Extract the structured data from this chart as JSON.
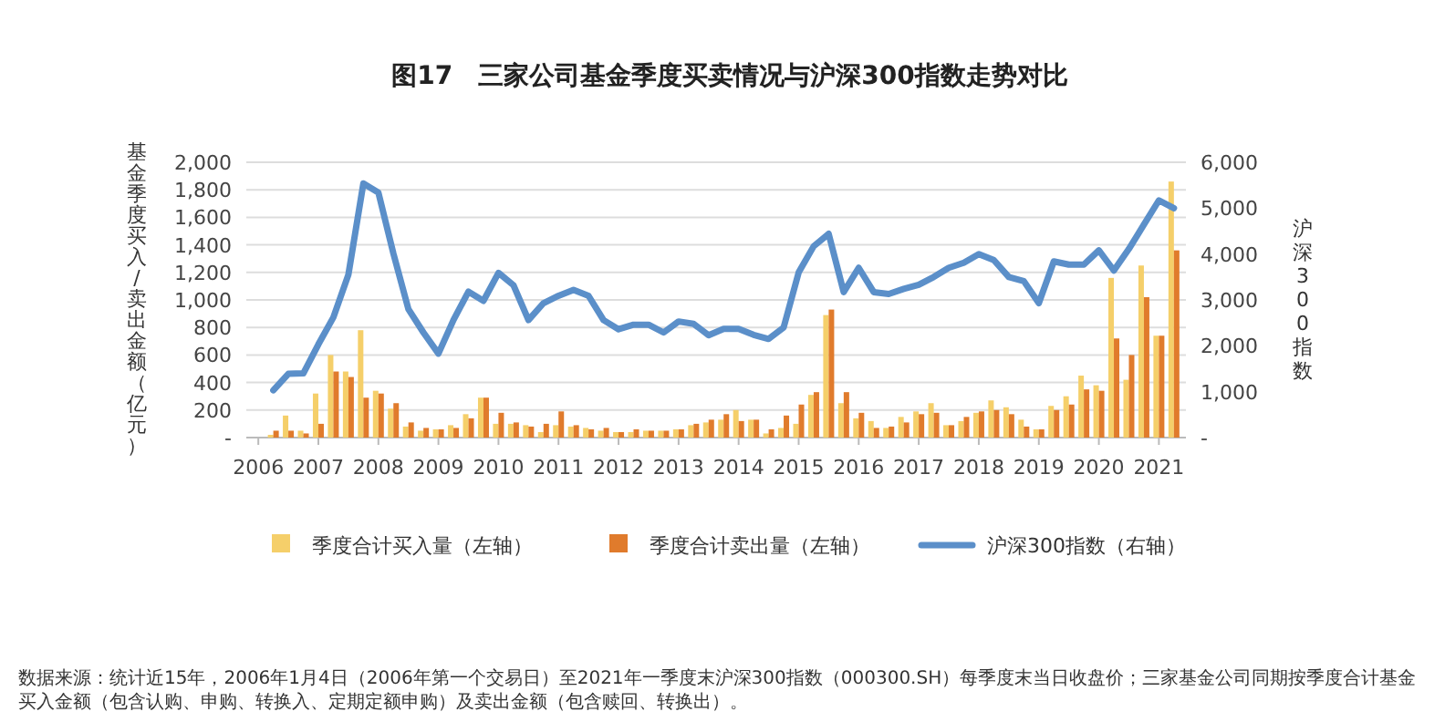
{
  "chart_data": {
    "type": "bar",
    "title": "图17　三家公司基金季度买卖情况与沪深300指数走势对比",
    "ylabel": "基金季度买入/卖出金额（亿元）",
    "y2label": "沪深300指数",
    "x": [
      2006.25,
      2006.5,
      2006.75,
      2007,
      2007.25,
      2007.5,
      2007.75,
      2008,
      2008.25,
      2008.5,
      2008.75,
      2009,
      2009.25,
      2009.5,
      2009.75,
      2010,
      2010.25,
      2010.5,
      2010.75,
      2011,
      2011.25,
      2011.5,
      2011.75,
      2012,
      2012.25,
      2012.5,
      2012.75,
      2013,
      2013.25,
      2013.5,
      2013.75,
      2014,
      2014.25,
      2014.5,
      2014.75,
      2015,
      2015.25,
      2015.5,
      2015.75,
      2016,
      2016.25,
      2016.5,
      2016.75,
      2017,
      2017.25,
      2017.5,
      2017.75,
      2018,
      2018.25,
      2018.5,
      2018.75,
      2019,
      2019.25,
      2019.5,
      2019.75,
      2020,
      2020.25,
      2020.5,
      2020.75,
      2021,
      2021.25
    ],
    "series": [
      {
        "name": "季度合计买入量（左轴）",
        "color": "#f5cf6a",
        "values": [
          20,
          160,
          50,
          320,
          600,
          480,
          780,
          340,
          210,
          80,
          50,
          60,
          90,
          170,
          290,
          100,
          100,
          90,
          40,
          90,
          80,
          70,
          50,
          40,
          40,
          50,
          50,
          60,
          90,
          110,
          130,
          200,
          130,
          30,
          70,
          100,
          310,
          890,
          250,
          140,
          120,
          70,
          150,
          190,
          250,
          90,
          120,
          180,
          270,
          220,
          130,
          60,
          230,
          300,
          450,
          380,
          1160,
          420,
          1250,
          740,
          1860
        ]
      },
      {
        "name": "季度合计卖出量（左轴）",
        "color": "#e07b2c",
        "values": [
          50,
          50,
          30,
          100,
          480,
          440,
          290,
          320,
          250,
          110,
          70,
          60,
          70,
          140,
          290,
          180,
          110,
          80,
          100,
          190,
          90,
          60,
          70,
          40,
          60,
          50,
          50,
          60,
          100,
          130,
          170,
          120,
          130,
          60,
          160,
          240,
          330,
          930,
          330,
          180,
          70,
          80,
          110,
          170,
          180,
          90,
          150,
          190,
          200,
          170,
          80,
          60,
          200,
          240,
          350,
          340,
          720,
          600,
          1020,
          740,
          1360
        ]
      },
      {
        "name": "沪深300指数（右轴）",
        "type": "line",
        "axis": "y2",
        "color": "#5b8fc9",
        "values": [
          1030,
          1390,
          1400,
          2030,
          2620,
          3550,
          5540,
          5340,
          4010,
          2800,
          2290,
          1830,
          2560,
          3180,
          2980,
          3590,
          3320,
          2560,
          2930,
          3090,
          3220,
          3090,
          2560,
          2360,
          2460,
          2460,
          2290,
          2530,
          2480,
          2230,
          2370,
          2370,
          2240,
          2150,
          2400,
          3600,
          4170,
          4440,
          3170,
          3700,
          3170,
          3130,
          3240,
          3330,
          3500,
          3700,
          3810,
          4000,
          3870,
          3500,
          3410,
          2930,
          3840,
          3770,
          3770,
          4080,
          3640,
          4110,
          4640,
          5170,
          5000
        ]
      }
    ],
    "xlim": [
      2005.8,
      2021.45
    ],
    "xticks": [
      2006,
      2007,
      2008,
      2009,
      2010,
      2011,
      2012,
      2013,
      2014,
      2015,
      2016,
      2017,
      2018,
      2019,
      2020,
      2021
    ],
    "ylim": [
      0,
      2000
    ],
    "yticks": [
      {
        "value": 0,
        "label": "-"
      },
      200,
      400,
      600,
      800,
      {
        "value": 1000,
        "label": "1,000"
      },
      {
        "value": 1200,
        "label": "1,200"
      },
      {
        "value": 1400,
        "label": "1,400"
      },
      {
        "value": 1600,
        "label": "1,600"
      },
      {
        "value": 1800,
        "label": "1,800"
      },
      {
        "value": 2000,
        "label": "2,000"
      }
    ],
    "y2lim": [
      0,
      6000
    ],
    "y2ticks": [
      {
        "value": 0,
        "label": "-"
      },
      {
        "value": 1000,
        "label": "1,000"
      },
      {
        "value": 2000,
        "label": "2,000"
      },
      {
        "value": 3000,
        "label": "3,000"
      },
      {
        "value": 4000,
        "label": "4,000"
      },
      {
        "value": 5000,
        "label": "5,000"
      },
      {
        "value": 6000,
        "label": "6,000"
      }
    ],
    "grid": "y",
    "legend": "bottom",
    "line_style": "solid",
    "annotations": [
      "数据来源：统计近15年，2006年1月4日（2006年第一个交易日）至2021年一季度末沪深300指数（000300.SH）每季度末当日收盘价；三家基金公司同期按季度合计基金买入金额（包含认购、申购、转换入、定期定额申购）及卖出金额（包含赎回、转换出）。"
    ]
  }
}
